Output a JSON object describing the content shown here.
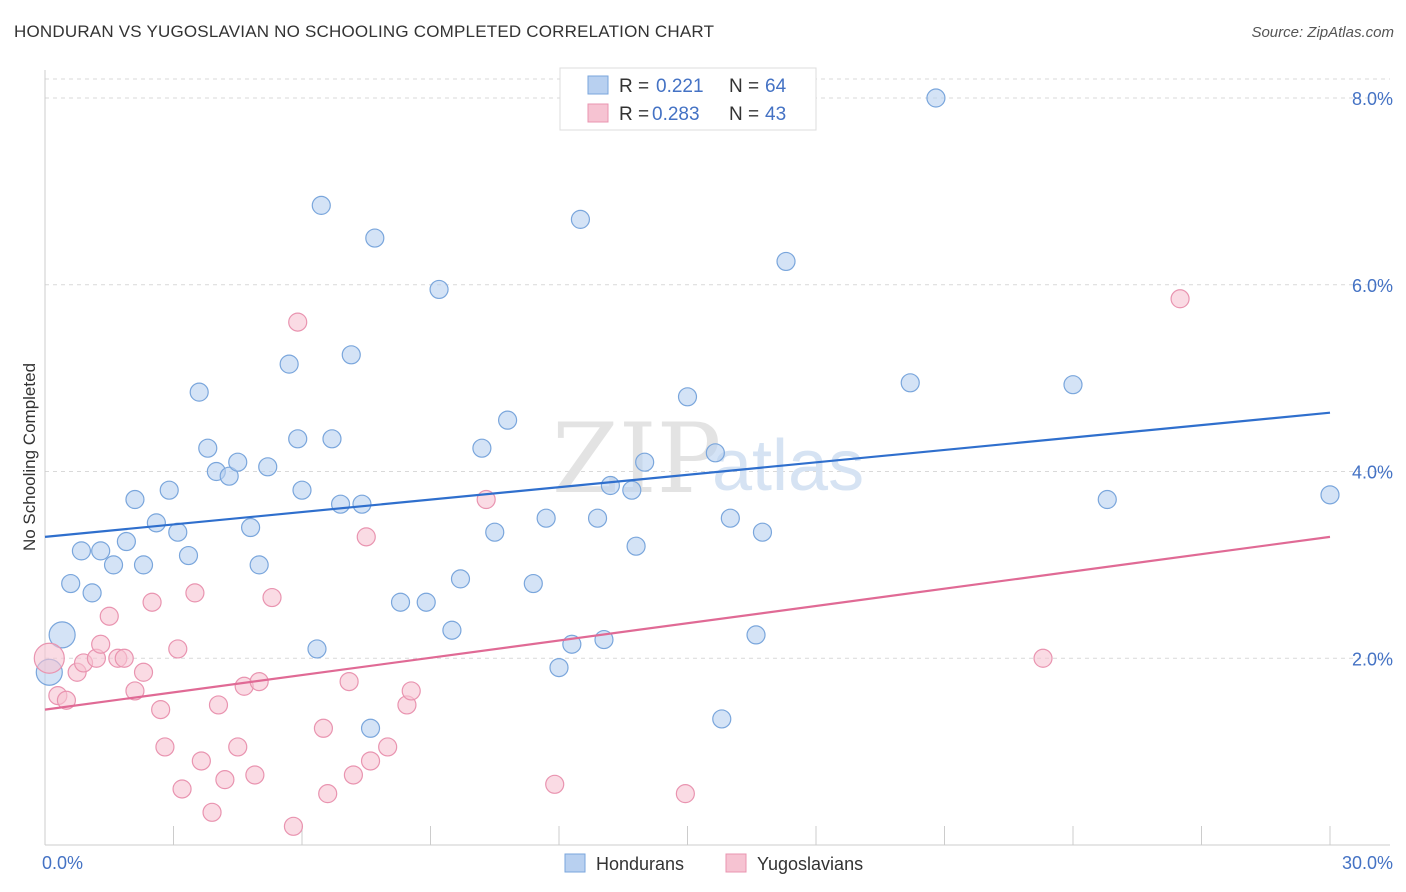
{
  "header": {
    "title": "HONDURAN VS YUGOSLAVIAN NO SCHOOLING COMPLETED CORRELATION CHART",
    "source": "Source: ZipAtlas.com"
  },
  "watermark": {
    "zip": "ZIP",
    "atlas": "atlas"
  },
  "colors": {
    "blue_fill": "#b8d0f0",
    "blue_stroke": "#7aa6dc",
    "blue_line": "#2f6fcd",
    "pink_fill": "#f6c3d2",
    "pink_stroke": "#e994b0",
    "pink_line": "#e06a95",
    "grid": "#d9d9d9",
    "tick_text": "#4472c4"
  },
  "legend": {
    "rows": [
      {
        "r_label": "R = ",
        "r_value": "0.221",
        "n_label": "N = ",
        "n_value": "64"
      },
      {
        "r_label": "R = ",
        "r_value": "0.283",
        "n_label": "N = ",
        "n_value": "43"
      }
    ]
  },
  "chart_data": {
    "type": "scatter",
    "title": "HONDURAN VS YUGOSLAVIAN NO SCHOOLING COMPLETED CORRELATION CHART",
    "xlabel": "",
    "ylabel": "No Schooling Completed",
    "xlim": [
      0,
      30
    ],
    "ylim": [
      0,
      8.3
    ],
    "x_tick_labels": [
      "0.0%",
      "30.0%"
    ],
    "y_ticks": [
      2,
      4,
      6,
      8
    ],
    "y_tick_labels": [
      "2.0%",
      "4.0%",
      "6.0%",
      "8.0%"
    ],
    "grid": true,
    "legend_placement": "top-center",
    "series": [
      {
        "name": "Hondurans",
        "color": "#b8d0f0",
        "trend": [
          [
            0,
            3.3
          ],
          [
            30,
            4.63
          ]
        ],
        "points": [
          [
            0.1,
            1.85
          ],
          [
            0.4,
            2.25
          ],
          [
            0.6,
            2.8
          ],
          [
            0.85,
            3.15
          ],
          [
            1.1,
            2.7
          ],
          [
            1.3,
            3.15
          ],
          [
            1.6,
            3.0
          ],
          [
            1.9,
            3.25
          ],
          [
            2.1,
            3.7
          ],
          [
            2.3,
            3.0
          ],
          [
            2.6,
            3.45
          ],
          [
            2.9,
            3.8
          ],
          [
            3.1,
            3.35
          ],
          [
            3.35,
            3.1
          ],
          [
            3.6,
            4.85
          ],
          [
            3.8,
            4.25
          ],
          [
            4.0,
            4.0
          ],
          [
            4.3,
            3.95
          ],
          [
            4.5,
            4.1
          ],
          [
            4.8,
            3.4
          ],
          [
            5.0,
            3.0
          ],
          [
            5.2,
            4.05
          ],
          [
            5.7,
            5.15
          ],
          [
            5.9,
            4.35
          ],
          [
            6.0,
            3.8
          ],
          [
            6.35,
            2.1
          ],
          [
            6.45,
            6.85
          ],
          [
            6.7,
            4.35
          ],
          [
            6.9,
            3.65
          ],
          [
            7.15,
            5.25
          ],
          [
            7.4,
            3.65
          ],
          [
            7.6,
            1.25
          ],
          [
            7.7,
            6.5
          ],
          [
            8.3,
            2.6
          ],
          [
            8.9,
            2.6
          ],
          [
            9.2,
            5.95
          ],
          [
            9.5,
            2.3
          ],
          [
            9.7,
            2.85
          ],
          [
            10.2,
            4.25
          ],
          [
            10.5,
            3.35
          ],
          [
            10.8,
            4.55
          ],
          [
            11.4,
            2.8
          ],
          [
            11.7,
            3.5
          ],
          [
            12.0,
            1.9
          ],
          [
            12.3,
            2.15
          ],
          [
            12.5,
            6.7
          ],
          [
            12.9,
            3.5
          ],
          [
            13.05,
            2.2
          ],
          [
            13.2,
            3.85
          ],
          [
            13.7,
            3.8
          ],
          [
            13.8,
            3.2
          ],
          [
            14.0,
            4.1
          ],
          [
            15.0,
            4.8
          ],
          [
            15.65,
            4.2
          ],
          [
            15.8,
            1.35
          ],
          [
            16.0,
            3.5
          ],
          [
            16.6,
            2.25
          ],
          [
            16.75,
            3.35
          ],
          [
            17.3,
            6.25
          ],
          [
            20.2,
            4.95
          ],
          [
            20.8,
            8.0
          ],
          [
            24.0,
            4.93
          ],
          [
            24.8,
            3.7
          ],
          [
            30.0,
            3.75
          ]
        ]
      },
      {
        "name": "Yugoslavians",
        "color": "#f6c3d2",
        "trend": [
          [
            0,
            1.45
          ],
          [
            30,
            3.3
          ]
        ],
        "points": [
          [
            0.1,
            2.0
          ],
          [
            0.3,
            1.6
          ],
          [
            0.5,
            1.55
          ],
          [
            0.75,
            1.85
          ],
          [
            0.9,
            1.95
          ],
          [
            1.2,
            2.0
          ],
          [
            1.3,
            2.15
          ],
          [
            1.5,
            2.45
          ],
          [
            1.7,
            2.0
          ],
          [
            1.85,
            2.0
          ],
          [
            2.1,
            1.65
          ],
          [
            2.3,
            1.85
          ],
          [
            2.5,
            2.6
          ],
          [
            2.7,
            1.45
          ],
          [
            2.8,
            1.05
          ],
          [
            3.1,
            2.1
          ],
          [
            3.2,
            0.6
          ],
          [
            3.5,
            2.7
          ],
          [
            3.65,
            0.9
          ],
          [
            3.9,
            0.35
          ],
          [
            4.05,
            1.5
          ],
          [
            4.2,
            0.7
          ],
          [
            4.5,
            1.05
          ],
          [
            4.65,
            1.7
          ],
          [
            4.9,
            0.75
          ],
          [
            5.0,
            1.75
          ],
          [
            5.3,
            2.65
          ],
          [
            5.8,
            0.2
          ],
          [
            5.9,
            5.6
          ],
          [
            6.5,
            1.25
          ],
          [
            6.6,
            0.55
          ],
          [
            7.1,
            1.75
          ],
          [
            7.2,
            0.75
          ],
          [
            7.5,
            3.3
          ],
          [
            7.6,
            0.9
          ],
          [
            8.0,
            1.05
          ],
          [
            8.45,
            1.5
          ],
          [
            8.55,
            1.65
          ],
          [
            10.3,
            3.7
          ],
          [
            11.9,
            0.65
          ],
          [
            14.95,
            0.55
          ],
          [
            23.3,
            2.0
          ],
          [
            26.5,
            5.85
          ]
        ]
      }
    ]
  },
  "bottom_legend": {
    "items": [
      {
        "label": "Hondurans"
      },
      {
        "label": "Yugoslavians"
      }
    ]
  }
}
